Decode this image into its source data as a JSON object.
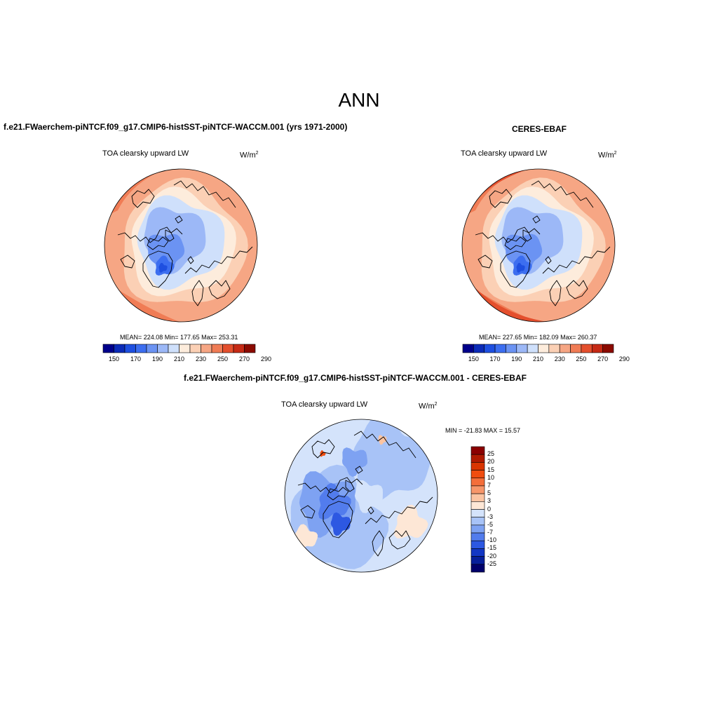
{
  "title": "ANN",
  "panels": [
    {
      "id": "model",
      "case_title": "f.e21.FWaerchem-piNTCF.f09_g17.CMIP6-histSST-piNTCF-WACCM.001 (yrs 1971-2000)",
      "variable": "TOA clearsky upward LW",
      "units_base": "W/m",
      "units_exp": "2",
      "stats": "MEAN= 224.08  Min= 177.65  Max= 253.31",
      "colorbar_labels": [
        "150",
        "170",
        "190",
        "210",
        "230",
        "250",
        "270",
        "290"
      ]
    },
    {
      "id": "obs",
      "case_title": "CERES-EBAF",
      "variable": "TOA clearsky upward LW",
      "units_base": "W/m",
      "units_exp": "2",
      "stats": "MEAN= 227.65  Min= 182.09  Max= 260.37",
      "colorbar_labels": [
        "150",
        "170",
        "190",
        "210",
        "230",
        "250",
        "270",
        "290"
      ]
    }
  ],
  "difference": {
    "case_title": "f.e21.FWaerchem-piNTCF.f09_g17.CMIP6-histSST-piNTCF-WACCM.001 - CERES-EBAF",
    "variable": "TOA clearsky upward LW",
    "units_base": "W/m",
    "units_exp": "2",
    "stats": "MIN = -21.83 MAX =  15.57",
    "colorbar_labels": [
      "25",
      "20",
      "15",
      "10",
      "7",
      "5",
      "3",
      "0",
      "-3",
      "-5",
      "-7",
      "-10",
      "-15",
      "-20",
      "-25"
    ]
  },
  "colors": {
    "abs_scale": [
      "#00008b",
      "#0b2bb8",
      "#1e4fe0",
      "#3c6ef0",
      "#6b93f3",
      "#9cb8f7",
      "#cfe0fb",
      "#fdecdc",
      "#fbd0b5",
      "#f6a684",
      "#f07c55",
      "#e44f2d",
      "#c62a15",
      "#8b0a00"
    ],
    "diff_scale": [
      "#8b0000",
      "#b01a00",
      "#d93500",
      "#f04d10",
      "#f46e3a",
      "#f7966a",
      "#fbc4a2",
      "#fde7d6",
      "#d4e3fb",
      "#a8c3f7",
      "#7ea2f2",
      "#527ced",
      "#2d58e2",
      "#1237c4",
      "#061f9a",
      "#00006b"
    ]
  }
}
